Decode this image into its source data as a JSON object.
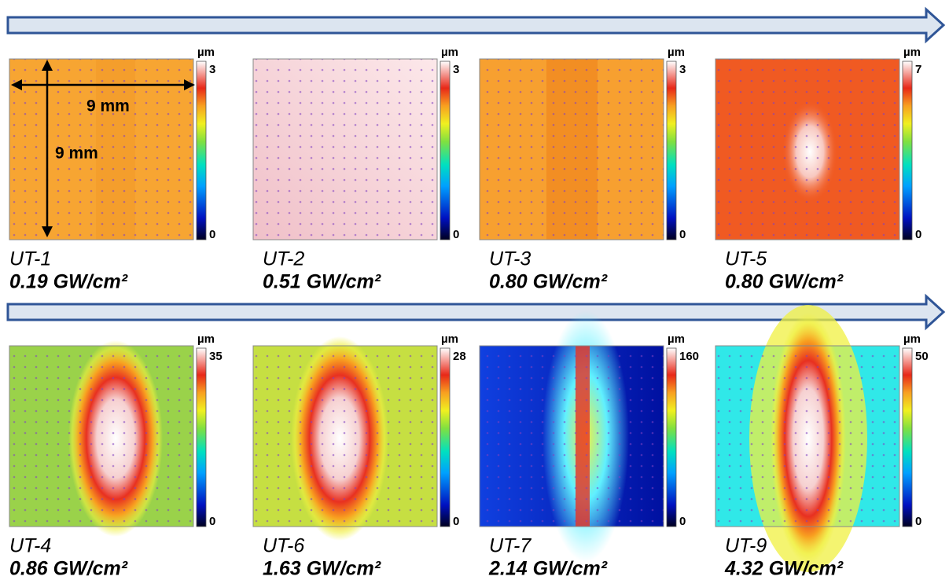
{
  "dimension_labels": [
    "9 mm",
    "9 mm"
  ],
  "panels": [
    {
      "name": "UT-1",
      "fluence": "0.19 GW/cm²",
      "unit": "µm",
      "max": 3,
      "min": 0
    },
    {
      "name": "UT-2",
      "fluence": "0.51 GW/cm²",
      "unit": "µm",
      "max": 3,
      "min": 0
    },
    {
      "name": "UT-3",
      "fluence": "0.80 GW/cm²",
      "unit": "µm",
      "max": 3,
      "min": 0
    },
    {
      "name": "UT-5",
      "fluence": "0.80 GW/cm²",
      "unit": "µm",
      "max": 7,
      "min": 0
    },
    {
      "name": "UT-4",
      "fluence": "0.86 GW/cm²",
      "unit": "µm",
      "max": 35,
      "min": 0
    },
    {
      "name": "UT-6",
      "fluence": "1.63 GW/cm²",
      "unit": "µm",
      "max": 28,
      "min": 0
    },
    {
      "name": "UT-7",
      "fluence": "2.14 GW/cm²",
      "unit": "µm",
      "max": 160,
      "min": 0
    },
    {
      "name": "UT-9",
      "fluence": "4.32 GW/cm²",
      "unit": "µm",
      "max": 50,
      "min": 0
    }
  ]
}
